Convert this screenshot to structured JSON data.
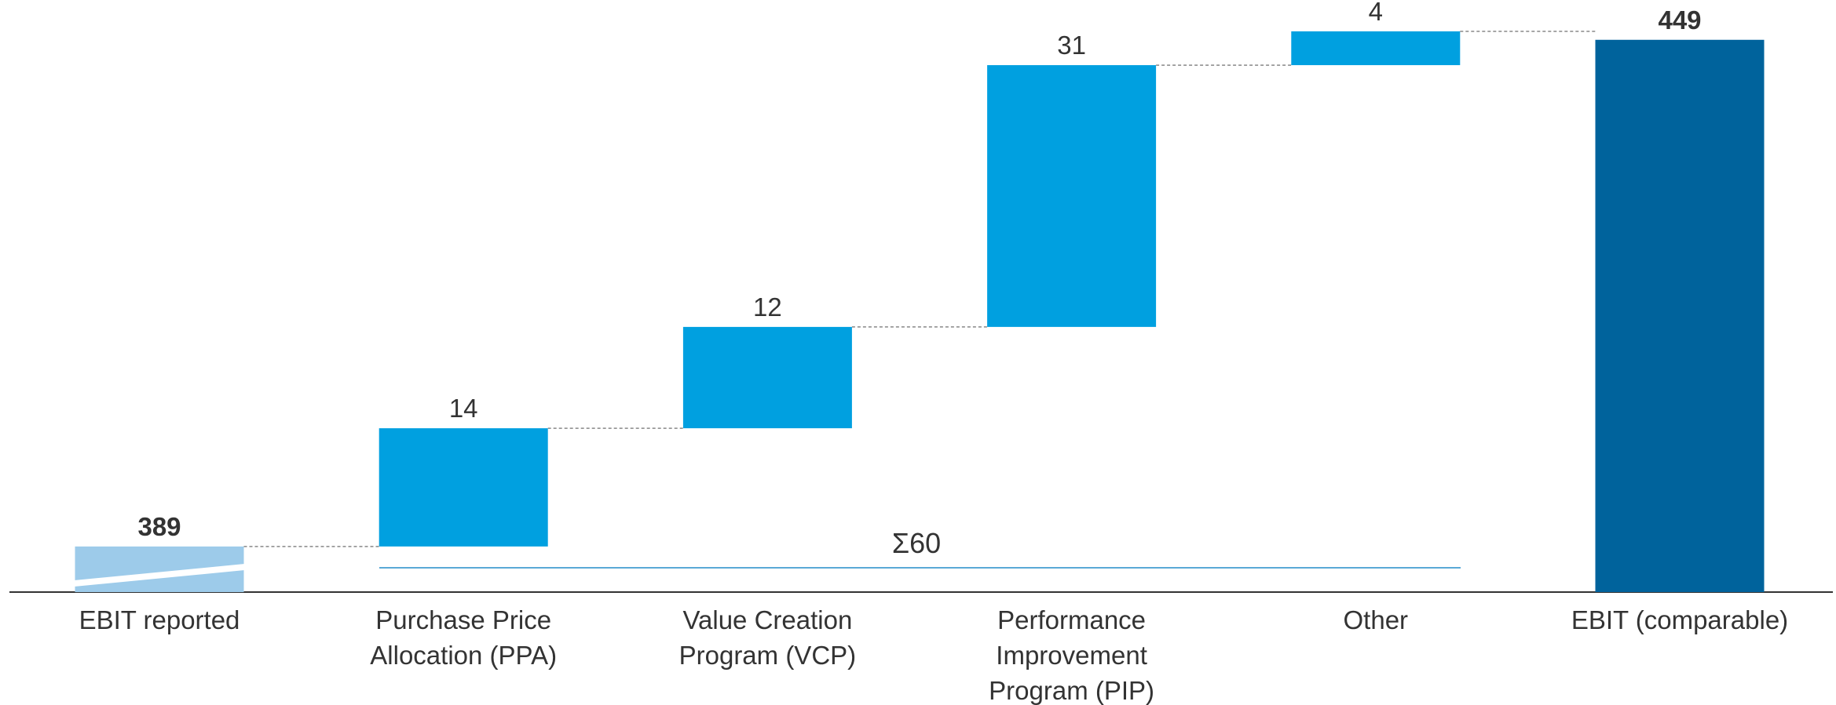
{
  "chart_data": {
    "type": "waterfall",
    "categories": [
      "EBIT reported",
      "Purchase Price\nAllocation (PPA)",
      "Value Creation\nProgram (VCP)",
      "Performance\nImprovement\nProgram (PIP)",
      "Other",
      "EBIT (comparable)"
    ],
    "values": [
      389,
      14,
      12,
      31,
      4,
      449
    ],
    "colors": [
      "#9dcbea",
      "#00a0e0",
      "#00a0e0",
      "#00a0e0",
      "#00a0e0",
      "#00639c"
    ],
    "annotation": "Σ60",
    "ylim": [
      383.6,
      450
    ]
  }
}
